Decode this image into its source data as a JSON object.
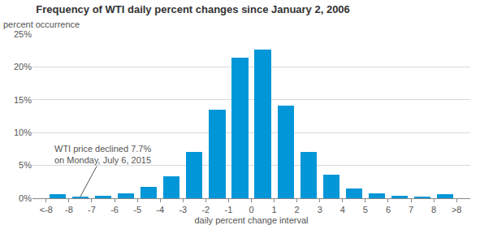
{
  "chart_data": {
    "type": "histogram",
    "title": "Frequency of WTI daily percent changes since January 2, 2006",
    "subtitle": "percent occurrence",
    "x_label": "daily percent change interval",
    "bins": [
      -9,
      -8,
      -7,
      -6,
      -5,
      -4,
      -3,
      -2,
      -1,
      0,
      1,
      2,
      3,
      4,
      5,
      6,
      7,
      8,
      9
    ],
    "values": [
      0.6,
      0.25,
      0.35,
      0.75,
      1.7,
      3.3,
      7.0,
      13.5,
      21.4,
      22.6,
      14.1,
      7.0,
      3.6,
      1.5,
      0.75,
      0.4,
      0.25,
      0.6
    ],
    "color": "#0096d7",
    "xlim": [
      -9.6,
      9.6
    ],
    "xticks": [
      {
        "value": -9,
        "label": "<-8"
      },
      -8,
      -7,
      -6,
      -5,
      -4,
      -3,
      -2,
      -1,
      0,
      1,
      2,
      3,
      4,
      5,
      6,
      7,
      8,
      {
        "value": 9,
        "label": ">8"
      }
    ],
    "ylim": [
      0,
      25
    ],
    "yticks": [
      {
        "value": 0,
        "label": "0%"
      },
      {
        "value": 5,
        "label": "5%"
      },
      {
        "value": 10,
        "label": "10%"
      },
      {
        "value": 15,
        "label": "15%"
      },
      {
        "value": 20,
        "label": "20%"
      },
      {
        "value": 25,
        "label": "25%"
      }
    ],
    "grid": true,
    "annotations": [
      {
        "text": [
          "WTI price declined 7.7%",
          "on Monday, July 6, 2015"
        ],
        "x": -7.5,
        "y": 0.25
      }
    ]
  }
}
